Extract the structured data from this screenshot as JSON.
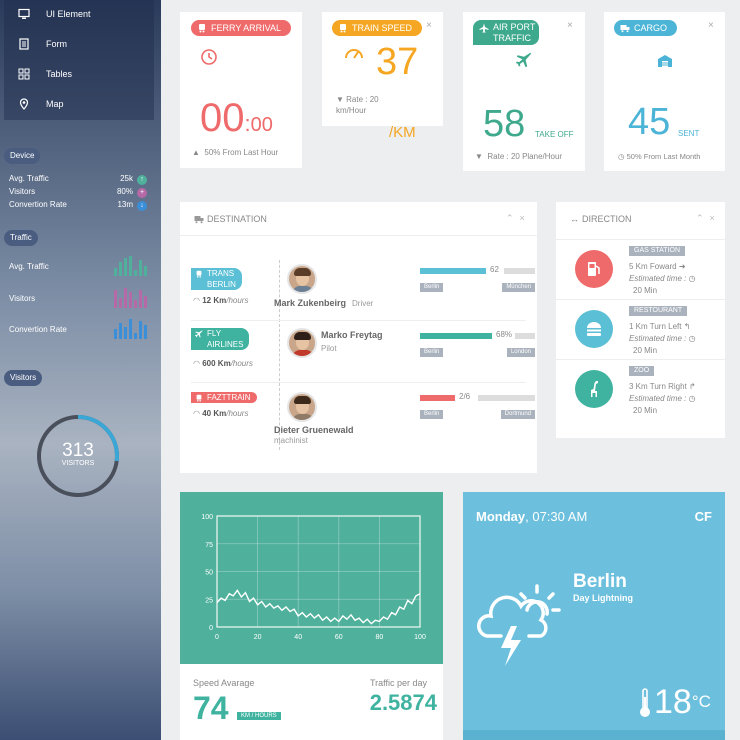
{
  "sidebar": {
    "menu": [
      {
        "label": "UI Element",
        "icon": "monitor-icon"
      },
      {
        "label": "Form",
        "icon": "form-icon"
      },
      {
        "label": "Tables",
        "icon": "grid-icon"
      },
      {
        "label": "Map",
        "icon": "map-pin-icon"
      }
    ],
    "device": {
      "title": "Device",
      "stats": [
        {
          "label": "Avg. Traffic",
          "value": "25k",
          "color": "#4fb09c",
          "icon": "up-arrow"
        },
        {
          "label": "Visitors",
          "value": "80%",
          "color": "#b569a6",
          "icon": "plus"
        },
        {
          "label": "Convertion Rate",
          "value": "13m",
          "color": "#3a8fd8",
          "icon": "down-arrow"
        }
      ]
    },
    "traffic": {
      "title": "Traffic",
      "rows": [
        {
          "label": "Avg. Traffic",
          "color": "#4fb09c",
          "bars": [
            0.4,
            0.7,
            0.9,
            1.0,
            0.3,
            0.8,
            0.5
          ]
        },
        {
          "label": "Visitors",
          "color": "#b569a6",
          "bars": [
            0.9,
            0.5,
            1.0,
            0.8,
            0.4,
            0.9,
            0.6
          ]
        },
        {
          "label": "Convertion Rate",
          "color": "#3a8fd8",
          "bars": [
            0.5,
            0.8,
            0.6,
            1.0,
            0.3,
            0.9,
            0.7
          ]
        }
      ]
    },
    "visitors": {
      "title": "Visitors",
      "count": "313",
      "label": "VISITORS",
      "fraction": 0.27
    }
  },
  "cards": {
    "ferry": {
      "title": "FERRY ARRIVAL",
      "time_h": "00",
      "time_sep": ":",
      "time_m": "00",
      "footer_pct": "50%",
      "footer_text": "From Last Hour",
      "color": "#ef6a6a"
    },
    "train": {
      "title": "TRAIN SPEED",
      "value": "37",
      "unit": "/KM",
      "rate_line1": "Rate : 20",
      "rate_line2": "km/Hour",
      "color": "#f5a623"
    },
    "air": {
      "title_line1": "AIR PORT",
      "title_line2": "TRAFFIC",
      "value": "58",
      "unit": "TAKE OFF",
      "rate": "Rate : 20 Plane/Hour",
      "color": "#3fa98e"
    },
    "cargo": {
      "title": "CARGO",
      "value": "45",
      "unit": "SENT",
      "footer": "50% From Last Month",
      "color": "#4cb4d6"
    }
  },
  "destination": {
    "title": "DESTINATION",
    "rows": [
      {
        "tag_line1": "TRANS",
        "tag_line2": "BERLIN",
        "tag_color": "#5bbfd5",
        "speed_value": "12 Km",
        "speed_unit": "/hours",
        "name": "Mark Zukenbeirg",
        "role": "Driver",
        "progress_label": "62",
        "progress": 0.62,
        "bar_color": "#5bbfd5",
        "from": "Berlin",
        "to": "München"
      },
      {
        "tag_line1": "FLY",
        "tag_line2": "AIRLINES",
        "tag_color": "#3fb3a0",
        "speed_value": "600 Km",
        "speed_unit": "/hours",
        "name": "Marko Freytag",
        "role": "Pilot",
        "progress_label": "68%",
        "progress": 0.68,
        "bar_color": "#3fb3a0",
        "from": "Berlin",
        "to": "London"
      },
      {
        "tag_line1": "FAZTTRAIN",
        "tag_line2": "",
        "tag_color": "#ef6a6a",
        "speed_value": "40 Km",
        "speed_unit": "/hours",
        "name": "Dieter Gruenewald",
        "role": "machinist",
        "progress_label": "2/6",
        "progress": 0.33,
        "bar_color": "#ef6a6a",
        "from": "Berlin",
        "to": "Dortmund"
      }
    ]
  },
  "direction": {
    "title": "DIRECTION",
    "rows": [
      {
        "tag": "GAS STATION",
        "dist": "5 Km Foward",
        "est": "Estimated time :",
        "time": "20 Min",
        "color": "#ef6a6a",
        "icon": "gas-pump-icon"
      },
      {
        "tag": "RESTOURANT",
        "dist": "1 Km Turn Left",
        "est": "Estimated time :",
        "time": "20 Min",
        "color": "#5bbfd5",
        "icon": "burger-icon"
      },
      {
        "tag": "ZOO",
        "dist": "3 Km Turn Right",
        "est": "Estimated time :",
        "time": "20 Min",
        "color": "#3fb3a0",
        "icon": "giraffe-icon"
      }
    ]
  },
  "chart_data": {
    "type": "line",
    "title": "",
    "xlabel": "",
    "ylabel": "",
    "xlim": [
      0,
      100
    ],
    "ylim": [
      0,
      100
    ],
    "xticks": [
      0,
      20,
      40,
      60,
      80,
      100
    ],
    "yticks": [
      0,
      25,
      50,
      75,
      100
    ],
    "grid": true,
    "series": [
      {
        "x": [
          0,
          2,
          4,
          6,
          8,
          10,
          12,
          14,
          16,
          18,
          20,
          22,
          24,
          26,
          28,
          30,
          32,
          34,
          36,
          38,
          40,
          42,
          44,
          46,
          48,
          50,
          52,
          54,
          56,
          58,
          60,
          62,
          64,
          66,
          68,
          70,
          72,
          74,
          76,
          78,
          80,
          82,
          84,
          86,
          88,
          90,
          92,
          94,
          96,
          98,
          100
        ],
        "y": [
          22,
          26,
          24,
          30,
          28,
          33,
          27,
          31,
          23,
          26,
          20,
          23,
          18,
          21,
          17,
          19,
          15,
          18,
          14,
          16,
          10,
          13,
          9,
          12,
          8,
          11,
          6,
          9,
          5,
          8,
          5,
          10,
          7,
          11,
          6,
          8,
          4,
          7,
          3,
          6,
          5,
          9,
          7,
          13,
          11,
          18,
          16,
          24,
          21,
          28,
          30
        ]
      }
    ],
    "color": "#ffffff"
  },
  "speed": {
    "label": "Speed Avarage",
    "value": "74",
    "unit": "KM / HOURS",
    "traffic_label": "Traffic per day",
    "traffic_value": "2.5874"
  },
  "weather": {
    "day": "Monday",
    "time": ", 07:30 AM",
    "units": "CF",
    "city": "Berlin",
    "condition": "Day Lightning",
    "temp": "18",
    "temp_unit": "°C"
  }
}
